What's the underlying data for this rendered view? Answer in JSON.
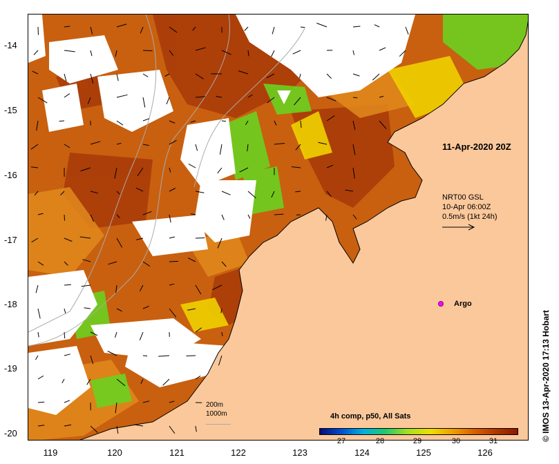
{
  "map": {
    "product": "4h comp, p50, All Sats",
    "event_label": "11-Apr-2020 20Z",
    "source_lines": [
      "NRT00 GSL",
      "10-Apr 06:00Z",
      "0.5m/s (1kt 24h)"
    ],
    "argo_label": "Argo",
    "credit": "© IMOS 13-Apr-2020 17:13 Hobart",
    "isobaths": [
      "200m",
      "1000m"
    ],
    "lat_ticks": [
      "-14",
      "-15",
      "-16",
      "-17",
      "-18",
      "-19",
      "-20"
    ],
    "lon_ticks": [
      "119",
      "120",
      "121",
      "122",
      "123",
      "124",
      "125",
      "126"
    ],
    "colorbar": {
      "ticks": [
        "27",
        "28",
        "29",
        "30",
        "31"
      ],
      "colors": [
        "#0a0a7a",
        "#0050d0",
        "#00b0e0",
        "#20c870",
        "#a0e020",
        "#f0e000",
        "#f0a000",
        "#d86000",
        "#b03800",
        "#8a1a00"
      ]
    },
    "land_color": "#fbc89b",
    "colors": {
      "sst_warm": "#c85a10",
      "sst_hot": "#a83a08",
      "sst_mid": "#e89a20",
      "sst_cool": "#70d020",
      "argo": "#ff00ff"
    }
  }
}
